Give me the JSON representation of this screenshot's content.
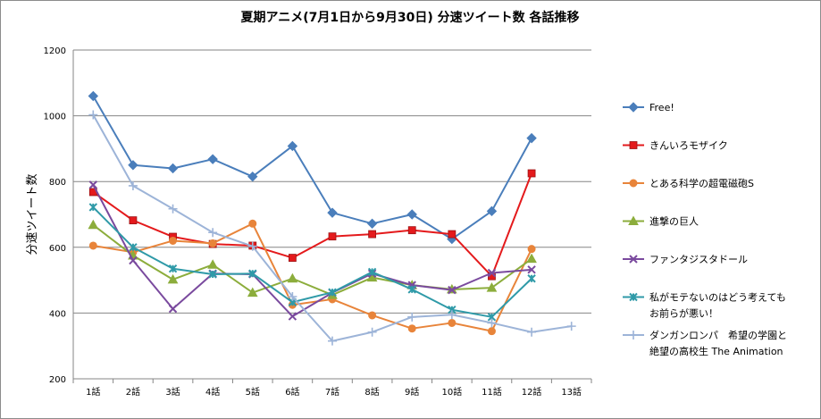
{
  "chart_data": {
    "type": "line",
    "title": "夏期アニメ(7月1日から9月30日) 分速ツイート数 各話推移",
    "xlabel": "",
    "ylabel": "分速ツイート数",
    "ylim": [
      200,
      1200
    ],
    "yticks": [
      200,
      400,
      600,
      800,
      1000,
      1200
    ],
    "grid": true,
    "legend_position": "right",
    "categories": [
      "1話",
      "2話",
      "3話",
      "4話",
      "5話",
      "6話",
      "7話",
      "8話",
      "9話",
      "10話",
      "11話",
      "12話",
      "13話"
    ],
    "series": [
      {
        "name": "Free!",
        "color": "#4a7ebb",
        "marker": "diamond",
        "values": [
          1060,
          850,
          840,
          868,
          815,
          908,
          705,
          672,
          700,
          625,
          710,
          932,
          null
        ]
      },
      {
        "name": "きんいろモザイク",
        "color": "#e41a1c",
        "marker": "square",
        "values": [
          768,
          682,
          632,
          610,
          605,
          568,
          633,
          640,
          652,
          640,
          512,
          825,
          null
        ]
      },
      {
        "name": "とある科学の超電磁砲S",
        "color": "#e8843a",
        "marker": "circle",
        "values": [
          605,
          585,
          620,
          612,
          672,
          425,
          442,
          393,
          353,
          370,
          345,
          595,
          null
        ]
      },
      {
        "name": "進撃の巨人",
        "color": "#8cad3c",
        "marker": "triangle",
        "values": [
          668,
          575,
          502,
          547,
          462,
          505,
          455,
          508,
          485,
          472,
          477,
          565,
          null
        ]
      },
      {
        "name": "ファンタジスタドール",
        "color": "#7a4a9e",
        "marker": "x",
        "values": [
          790,
          560,
          413,
          520,
          518,
          390,
          462,
          520,
          485,
          470,
          522,
          532,
          null
        ]
      },
      {
        "name": "私がモテないのはどう考えてもお前らが悪い！",
        "color": "#2f9aa8",
        "marker": "star",
        "legend_lines": [
          "私がモテないのはどう考えても",
          "お前らが悪い！"
        ],
        "values": [
          722,
          600,
          535,
          518,
          520,
          433,
          463,
          525,
          472,
          410,
          388,
          505,
          null
        ]
      },
      {
        "name": "ダンガンロンパ 希望の学園と絶望の高校生 The Animation",
        "color": "#9db4d8",
        "marker": "plus",
        "legend_lines": [
          "ダンガンロンパ　希望の学園と",
          "絶望の高校生 The Animation"
        ],
        "values": [
          1003,
          787,
          717,
          645,
          603,
          450,
          315,
          342,
          388,
          395,
          370,
          342,
          360
        ]
      }
    ]
  }
}
